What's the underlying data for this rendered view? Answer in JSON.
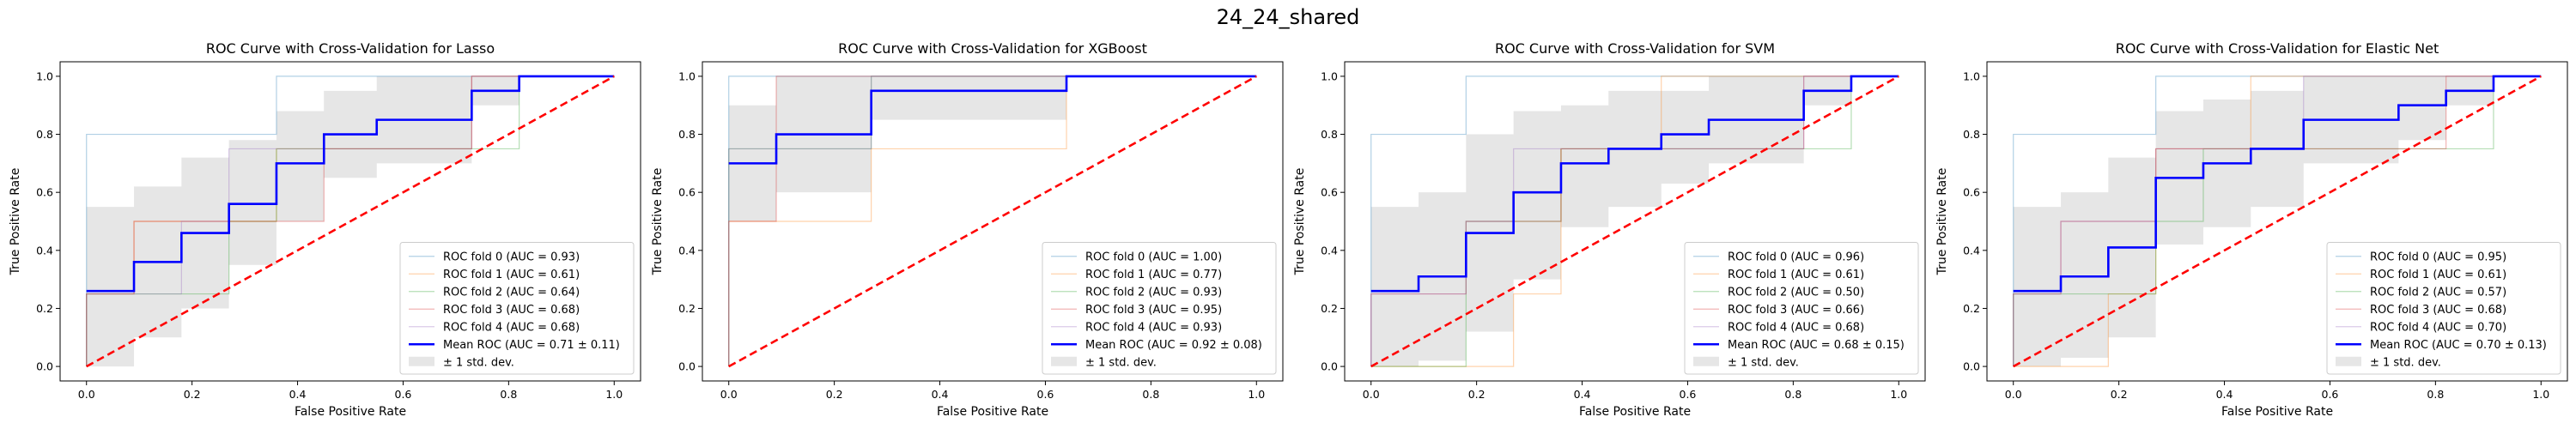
{
  "figure_title": "24_24_shared",
  "chart_data": [
    {
      "type": "line",
      "title": "ROC Curve with Cross-Validation for Lasso",
      "xlabel": "False Positive Rate",
      "ylabel": "True Positive Rate",
      "xlim": [
        -0.05,
        1.05
      ],
      "ylim": [
        -0.05,
        1.05
      ],
      "xticks": [
        "0.0",
        "0.2",
        "0.4",
        "0.6",
        "0.8",
        "1.0"
      ],
      "yticks": [
        "0.0",
        "0.2",
        "0.4",
        "0.6",
        "0.8",
        "1.0"
      ],
      "legend_position": "lower-right",
      "series": [
        {
          "name": "ROC fold 0 (AUC = 0.93)",
          "color": "#1f77b4",
          "x": [
            0,
            0,
            0.09,
            0.09,
            0.18,
            0.18,
            0.36,
            0.36,
            1
          ],
          "y": [
            0,
            0.8,
            0.8,
            0.8,
            0.8,
            0.8,
            0.8,
            1.0,
            1.0
          ]
        },
        {
          "name": "ROC fold 1 (AUC = 0.61)",
          "color": "#ff7f0e",
          "x": [
            0,
            0,
            0.09,
            0.09,
            0.18,
            0.18,
            0.36,
            0.36,
            0.73,
            0.73,
            1
          ],
          "y": [
            0,
            0.25,
            0.25,
            0.5,
            0.5,
            0.5,
            0.5,
            0.75,
            0.75,
            1.0,
            1.0
          ]
        },
        {
          "name": "ROC fold 2 (AUC = 0.64)",
          "color": "#2ca02c",
          "x": [
            0,
            0,
            0.27,
            0.27,
            0.36,
            0.36,
            0.82,
            0.82,
            1
          ],
          "y": [
            0,
            0.25,
            0.25,
            0.5,
            0.5,
            0.75,
            0.75,
            1.0,
            1.0
          ]
        },
        {
          "name": "ROC fold 3 (AUC = 0.68)",
          "color": "#d62728",
          "x": [
            0,
            0,
            0.09,
            0.09,
            0.45,
            0.45,
            0.73,
            0.73,
            1
          ],
          "y": [
            0,
            0.25,
            0.25,
            0.5,
            0.5,
            0.75,
            0.75,
            1.0,
            1.0
          ]
        },
        {
          "name": "ROC fold 4 (AUC = 0.68)",
          "color": "#9467bd",
          "x": [
            0,
            0,
            0.18,
            0.18,
            0.27,
            0.27,
            0.45,
            0.45,
            0.73,
            0.73,
            1
          ],
          "y": [
            0,
            0.25,
            0.25,
            0.5,
            0.5,
            0.75,
            0.75,
            0.75,
            0.75,
            1.0,
            1.0
          ]
        },
        {
          "name": "Mean ROC (AUC = 0.71 ± 0.11)",
          "color": "#0000ff",
          "x": [
            0,
            0.09,
            0.09,
            0.18,
            0.18,
            0.27,
            0.27,
            0.36,
            0.36,
            0.45,
            0.45,
            0.55,
            0.55,
            0.73,
            0.73,
            0.82,
            0.82,
            1.0
          ],
          "y": [
            0.26,
            0.26,
            0.36,
            0.36,
            0.46,
            0.46,
            0.56,
            0.56,
            0.7,
            0.7,
            0.8,
            0.8,
            0.85,
            0.85,
            0.95,
            0.95,
            1.0,
            1.0
          ]
        }
      ],
      "std_band": {
        "name": "± 1 std. dev.",
        "color": "#808080",
        "x": [
          0,
          0.09,
          0.09,
          0.18,
          0.18,
          0.27,
          0.27,
          0.36,
          0.36,
          0.45,
          0.45,
          0.55,
          0.55,
          0.73,
          0.73,
          0.82,
          0.82,
          1.0
        ],
        "upper": [
          0.55,
          0.55,
          0.62,
          0.62,
          0.72,
          0.72,
          0.78,
          0.78,
          0.88,
          0.88,
          0.95,
          0.95,
          1.0,
          1.0,
          1.0,
          1.0,
          1.0,
          1.0
        ],
        "lower": [
          0.0,
          0.0,
          0.1,
          0.1,
          0.2,
          0.2,
          0.35,
          0.35,
          0.5,
          0.5,
          0.65,
          0.65,
          0.7,
          0.7,
          0.9,
          0.9,
          1.0,
          1.0
        ]
      },
      "chance_line": {
        "color": "#ff0000",
        "x": [
          0,
          1
        ],
        "y": [
          0,
          1
        ]
      }
    },
    {
      "type": "line",
      "title": "ROC Curve with Cross-Validation for XGBoost",
      "xlabel": "False Positive Rate",
      "ylabel": "True Positive Rate",
      "xlim": [
        -0.05,
        1.05
      ],
      "ylim": [
        -0.05,
        1.05
      ],
      "xticks": [
        "0.0",
        "0.2",
        "0.4",
        "0.6",
        "0.8",
        "1.0"
      ],
      "yticks": [
        "0.0",
        "0.2",
        "0.4",
        "0.6",
        "0.8",
        "1.0"
      ],
      "legend_position": "lower-right",
      "series": [
        {
          "name": "ROC fold 0 (AUC = 1.00)",
          "color": "#1f77b4",
          "x": [
            0,
            0,
            1
          ],
          "y": [
            0,
            1.0,
            1.0
          ]
        },
        {
          "name": "ROC fold 1 (AUC = 0.77)",
          "color": "#ff7f0e",
          "x": [
            0,
            0,
            0.27,
            0.27,
            0.64,
            0.64,
            1
          ],
          "y": [
            0,
            0.5,
            0.5,
            0.75,
            0.75,
            1.0,
            1.0
          ]
        },
        {
          "name": "ROC fold 2 (AUC = 0.93)",
          "color": "#2ca02c",
          "x": [
            0,
            0,
            0.27,
            0.27,
            1
          ],
          "y": [
            0,
            0.75,
            0.75,
            1.0,
            1.0
          ]
        },
        {
          "name": "ROC fold 3 (AUC = 0.95)",
          "color": "#d62728",
          "x": [
            0,
            0,
            0.09,
            0.09,
            1
          ],
          "y": [
            0,
            0.5,
            0.5,
            1.0,
            1.0
          ]
        },
        {
          "name": "ROC fold 4 (AUC = 0.93)",
          "color": "#9467bd",
          "x": [
            0,
            0,
            0.27,
            0.27,
            1
          ],
          "y": [
            0,
            0.75,
            0.75,
            1.0,
            1.0
          ]
        }
      ],
      "mean": {
        "name": "Mean ROC (AUC = 0.92 ± 0.08)",
        "color": "#0000ff",
        "x": [
          0,
          0.09,
          0.09,
          0.27,
          0.27,
          0.64,
          0.64,
          1.0
        ],
        "y": [
          0.7,
          0.7,
          0.8,
          0.8,
          0.95,
          0.95,
          1.0,
          1.0
        ]
      },
      "std_band": {
        "name": "± 1 std. dev.",
        "color": "#808080",
        "x": [
          0,
          0.09,
          0.09,
          0.27,
          0.27,
          0.64,
          0.64,
          1.0
        ],
        "upper": [
          0.9,
          0.9,
          1.0,
          1.0,
          1.0,
          1.0,
          1.0,
          1.0
        ],
        "lower": [
          0.5,
          0.5,
          0.6,
          0.6,
          0.85,
          0.85,
          1.0,
          1.0
        ]
      },
      "chance_line": {
        "color": "#ff0000",
        "x": [
          0,
          1
        ],
        "y": [
          0,
          1
        ]
      }
    },
    {
      "type": "line",
      "title": "ROC Curve with Cross-Validation for SVM",
      "xlabel": "False Positive Rate",
      "ylabel": "True Positive Rate",
      "xlim": [
        -0.05,
        1.05
      ],
      "ylim": [
        -0.05,
        1.05
      ],
      "xticks": [
        "0.0",
        "0.2",
        "0.4",
        "0.6",
        "0.8",
        "1.0"
      ],
      "yticks": [
        "0.0",
        "0.2",
        "0.4",
        "0.6",
        "0.8",
        "1.0"
      ],
      "legend_position": "lower-right",
      "series": [
        {
          "name": "ROC fold 0 (AUC = 0.96)",
          "color": "#1f77b4",
          "x": [
            0,
            0,
            0.18,
            0.18,
            1
          ],
          "y": [
            0,
            0.8,
            0.8,
            1.0,
            1.0
          ]
        },
        {
          "name": "ROC fold 1 (AUC = 0.61)",
          "color": "#ff7f0e",
          "x": [
            0,
            0.27,
            0.27,
            0.36,
            0.36,
            0.55,
            0.55,
            1
          ],
          "y": [
            0,
            0,
            0.25,
            0.25,
            0.75,
            0.75,
            1.0,
            1.0
          ]
        },
        {
          "name": "ROC fold 2 (AUC = 0.50)",
          "color": "#2ca02c",
          "x": [
            0,
            0.18,
            0.18,
            0.36,
            0.36,
            0.91,
            0.91,
            1
          ],
          "y": [
            0,
            0,
            0.5,
            0.5,
            0.75,
            0.75,
            1.0,
            1.0
          ]
        },
        {
          "name": "ROC fold 3 (AUC = 0.66)",
          "color": "#d62728",
          "x": [
            0,
            0,
            0.18,
            0.18,
            0.36,
            0.36,
            0.82,
            0.82,
            1
          ],
          "y": [
            0,
            0.25,
            0.25,
            0.5,
            0.5,
            0.75,
            0.75,
            1.0,
            1.0
          ]
        },
        {
          "name": "ROC fold 4 (AUC = 0.68)",
          "color": "#9467bd",
          "x": [
            0,
            0,
            0.18,
            0.18,
            0.27,
            0.27,
            0.55,
            0.55,
            0.82,
            0.82,
            1
          ],
          "y": [
            0,
            0.25,
            0.25,
            0.5,
            0.5,
            0.75,
            0.75,
            0.75,
            0.75,
            1.0,
            1.0
          ]
        },
        {
          "name": "Mean ROC (AUC = 0.68 ± 0.15)",
          "color": "#0000ff",
          "x": [
            0,
            0.09,
            0.09,
            0.18,
            0.18,
            0.27,
            0.27,
            0.36,
            0.36,
            0.45,
            0.45,
            0.55,
            0.55,
            0.64,
            0.64,
            0.82,
            0.82,
            0.91,
            0.91,
            1.0
          ],
          "y": [
            0.26,
            0.26,
            0.31,
            0.31,
            0.46,
            0.46,
            0.6,
            0.6,
            0.7,
            0.7,
            0.75,
            0.75,
            0.8,
            0.8,
            0.85,
            0.85,
            0.95,
            0.95,
            1.0,
            1.0
          ]
        }
      ],
      "std_band": {
        "name": "± 1 std. dev.",
        "color": "#808080",
        "x": [
          0,
          0.09,
          0.09,
          0.18,
          0.18,
          0.27,
          0.27,
          0.36,
          0.36,
          0.45,
          0.45,
          0.55,
          0.55,
          0.64,
          0.64,
          0.82,
          0.82,
          0.91,
          0.91,
          1.0
        ],
        "upper": [
          0.55,
          0.55,
          0.6,
          0.6,
          0.8,
          0.8,
          0.88,
          0.88,
          0.9,
          0.9,
          0.95,
          0.95,
          0.95,
          0.95,
          1.0,
          1.0,
          1.0,
          1.0,
          1.0,
          1.0
        ],
        "lower": [
          0.0,
          0.0,
          0.02,
          0.02,
          0.12,
          0.12,
          0.3,
          0.3,
          0.48,
          0.48,
          0.55,
          0.55,
          0.63,
          0.63,
          0.7,
          0.7,
          0.9,
          0.9,
          1.0,
          1.0
        ]
      },
      "chance_line": {
        "color": "#ff0000",
        "x": [
          0,
          1
        ],
        "y": [
          0,
          1
        ]
      }
    },
    {
      "type": "line",
      "title": "ROC Curve with Cross-Validation for Elastic Net",
      "xlabel": "False Positive Rate",
      "ylabel": "True Positive Rate",
      "xlim": [
        -0.05,
        1.05
      ],
      "ylim": [
        -0.05,
        1.05
      ],
      "xticks": [
        "0.0",
        "0.2",
        "0.4",
        "0.6",
        "0.8",
        "1.0"
      ],
      "yticks": [
        "0.0",
        "0.2",
        "0.4",
        "0.6",
        "0.8",
        "1.0"
      ],
      "legend_position": "lower-right",
      "series": [
        {
          "name": "ROC fold 0 (AUC = 0.95)",
          "color": "#1f77b4",
          "x": [
            0,
            0,
            0.27,
            0.27,
            1
          ],
          "y": [
            0,
            0.8,
            0.8,
            1.0,
            1.0
          ]
        },
        {
          "name": "ROC fold 1 (AUC = 0.61)",
          "color": "#ff7f0e",
          "x": [
            0,
            0.18,
            0.18,
            0.27,
            0.27,
            0.45,
            0.45,
            1
          ],
          "y": [
            0,
            0,
            0.25,
            0.25,
            0.75,
            0.75,
            1.0,
            1.0
          ]
        },
        {
          "name": "ROC fold 2 (AUC = 0.57)",
          "color": "#2ca02c",
          "x": [
            0,
            0,
            0.27,
            0.27,
            0.36,
            0.36,
            0.91,
            0.91,
            1
          ],
          "y": [
            0,
            0.25,
            0.25,
            0.5,
            0.5,
            0.75,
            0.75,
            1.0,
            1.0
          ]
        },
        {
          "name": "ROC fold 3 (AUC = 0.68)",
          "color": "#d62728",
          "x": [
            0,
            0,
            0.09,
            0.09,
            0.27,
            0.27,
            0.82,
            0.82,
            1
          ],
          "y": [
            0,
            0.25,
            0.25,
            0.5,
            0.5,
            0.75,
            0.75,
            1.0,
            1.0
          ]
        },
        {
          "name": "ROC fold 4 (AUC = 0.70)",
          "color": "#9467bd",
          "x": [
            0,
            0,
            0.09,
            0.09,
            0.27,
            0.27,
            0.55,
            0.55,
            1
          ],
          "y": [
            0,
            0.25,
            0.25,
            0.5,
            0.5,
            0.75,
            0.75,
            1.0,
            1.0
          ]
        },
        {
          "name": "Mean ROC (AUC = 0.70 ± 0.13)",
          "color": "#0000ff",
          "x": [
            0,
            0.09,
            0.09,
            0.18,
            0.18,
            0.27,
            0.27,
            0.36,
            0.36,
            0.45,
            0.45,
            0.55,
            0.55,
            0.73,
            0.73,
            0.82,
            0.82,
            0.91,
            0.91,
            1.0
          ],
          "y": [
            0.26,
            0.26,
            0.31,
            0.31,
            0.41,
            0.41,
            0.65,
            0.65,
            0.7,
            0.7,
            0.75,
            0.75,
            0.85,
            0.85,
            0.9,
            0.9,
            0.95,
            0.95,
            1.0,
            1.0
          ]
        }
      ],
      "std_band": {
        "name": "± 1 std. dev.",
        "color": "#808080",
        "x": [
          0,
          0.09,
          0.09,
          0.18,
          0.18,
          0.27,
          0.27,
          0.36,
          0.36,
          0.45,
          0.45,
          0.55,
          0.55,
          0.73,
          0.73,
          0.82,
          0.82,
          0.91,
          0.91,
          1.0
        ],
        "upper": [
          0.55,
          0.55,
          0.6,
          0.6,
          0.72,
          0.72,
          0.88,
          0.88,
          0.92,
          0.92,
          0.95,
          0.95,
          1.0,
          1.0,
          1.0,
          1.0,
          1.0,
          1.0,
          1.0,
          1.0
        ],
        "lower": [
          0.0,
          0.0,
          0.03,
          0.03,
          0.1,
          0.1,
          0.42,
          0.42,
          0.48,
          0.48,
          0.55,
          0.55,
          0.7,
          0.7,
          0.78,
          0.78,
          0.9,
          0.9,
          1.0,
          1.0
        ]
      },
      "chance_line": {
        "color": "#ff0000",
        "x": [
          0,
          1
        ],
        "y": [
          0,
          1
        ]
      }
    }
  ]
}
